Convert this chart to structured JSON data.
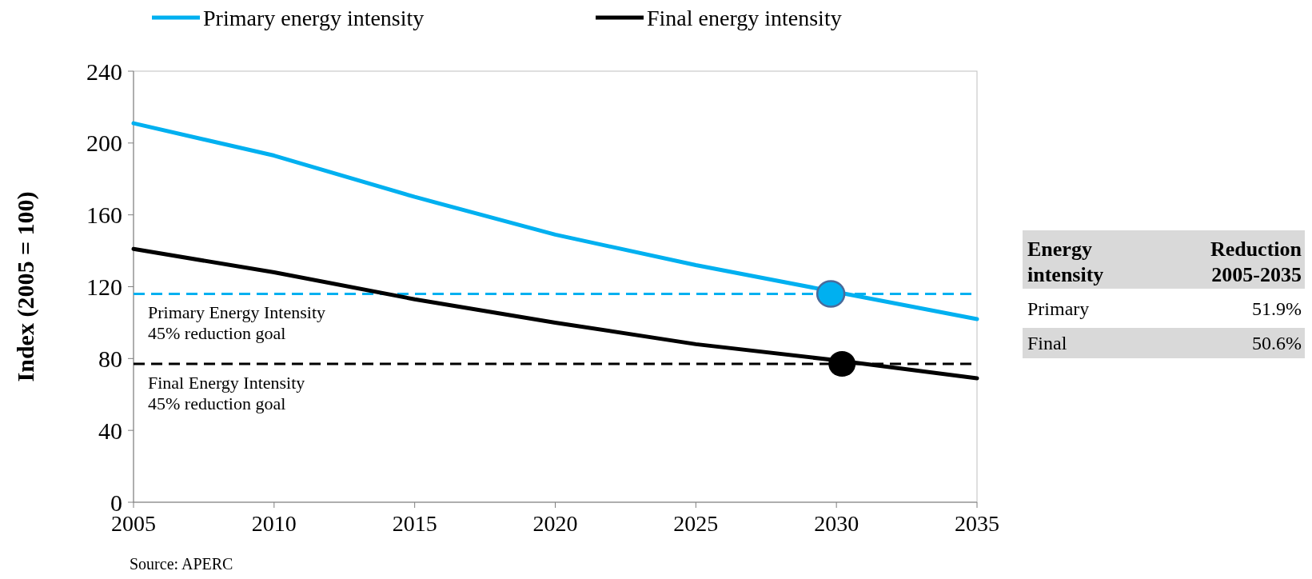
{
  "chart_data": [
    {
      "type": "line",
      "ylabel": "Index (2005 = 100)",
      "x": [
        2005,
        2010,
        2015,
        2020,
        2025,
        2030,
        2035
      ],
      "series": [
        {
          "name": "Primary energy intensity",
          "color": "#00b0f0",
          "values": [
            211,
            193,
            170,
            149,
            132,
            117,
            102
          ]
        },
        {
          "name": "Final energy intensity",
          "color": "#000000",
          "values": [
            141,
            128,
            113,
            100,
            88,
            79,
            69
          ]
        },
        {
          "type": "scatter",
          "color": "#00b0f0",
          "x": [
            2029.8
          ],
          "values": [
            116
          ],
          "marker": "circle"
        },
        {
          "type": "scatter",
          "color": "#000000",
          "x": [
            2030.2
          ],
          "values": [
            77
          ],
          "marker": "circle"
        }
      ],
      "xlim": [
        2005,
        2035
      ],
      "xticks": [
        2005,
        2010,
        2015,
        2020,
        2025,
        2030,
        2035
      ],
      "ylim": [
        0,
        240
      ],
      "yticks": [
        0,
        40,
        80,
        120,
        160,
        200,
        240
      ],
      "ref_lines": [
        {
          "axis": "y",
          "value": 116,
          "label": "Primary Energy Intensity\n45% reduction goal",
          "color": "#00b0f0",
          "line_style": "dashed"
        },
        {
          "axis": "y",
          "value": 77,
          "label": "Final Energy Intensity\n45% reduction goal",
          "color": "#000000",
          "line_style": "dashed"
        }
      ],
      "annotations": [
        "Source: APERC"
      ],
      "legend": "top",
      "grid": false
    },
    {
      "type": "other",
      "annotations": [
        "Energy intensity",
        "Reduction 2005-2035",
        "Primary",
        "51.9%",
        "Final",
        "50.6%"
      ]
    }
  ]
}
